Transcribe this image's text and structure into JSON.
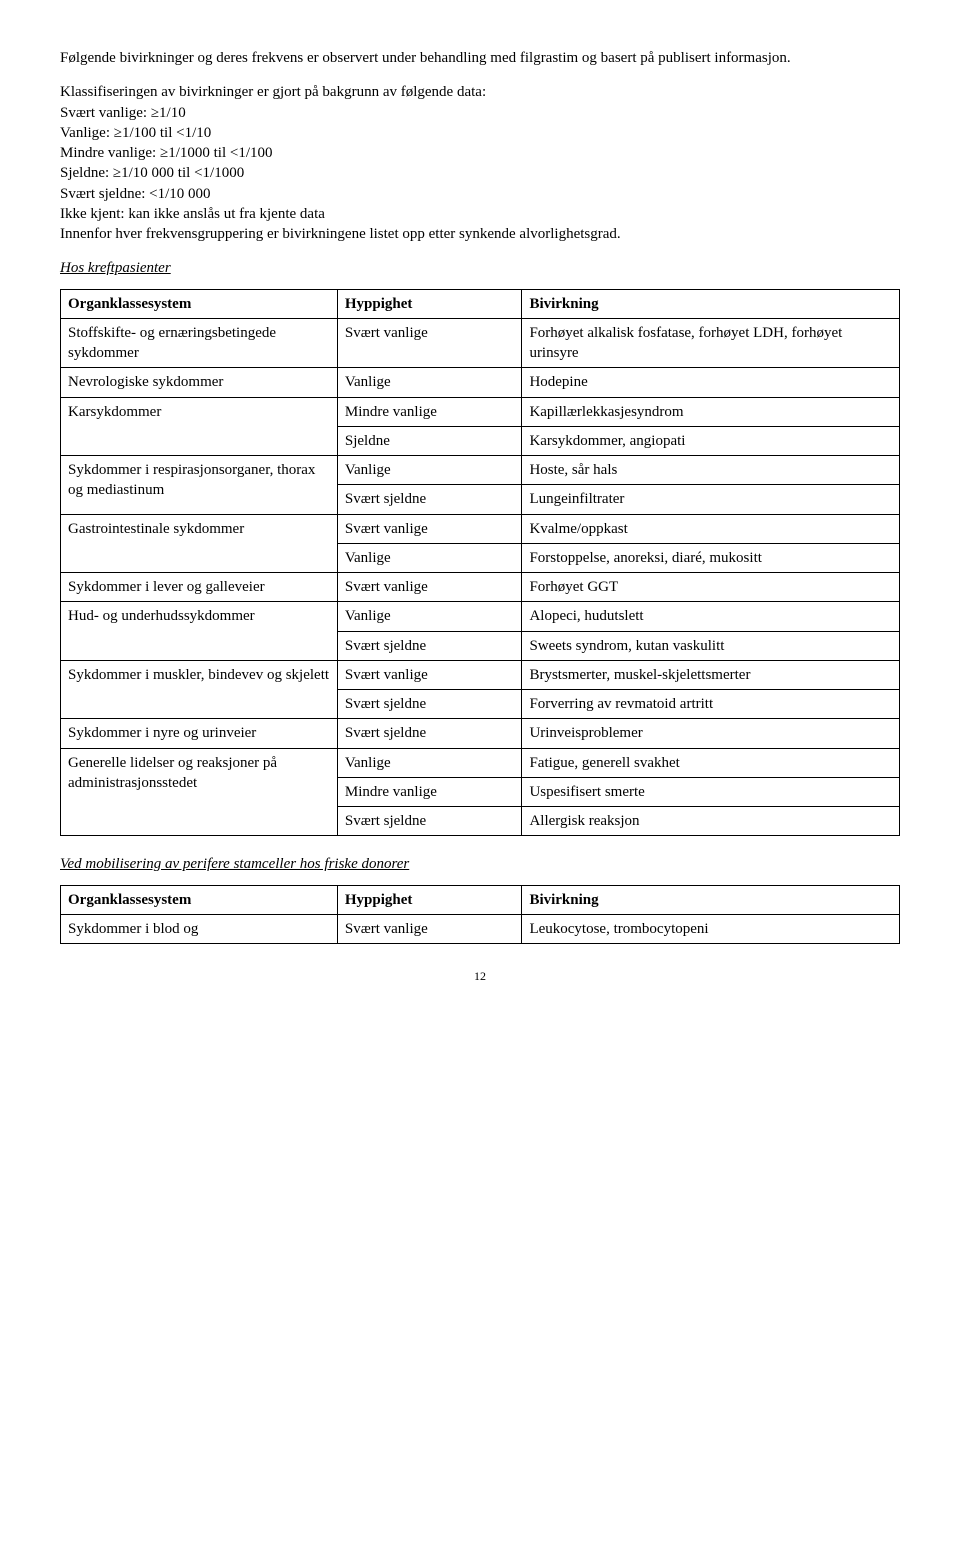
{
  "intro_para": "Følgende bivirkninger og deres frekvens er observert under behandling med filgrastim og basert på publisert informasjon.",
  "defs_intro": "Klassifiseringen av bivirkninger er gjort på bakgrunn av følgende data:",
  "defs": [
    "Svært vanlige: ≥1/10",
    "Vanlige: ≥1/100 til <1/10",
    "Mindre vanlige: ≥1/1000 til <1/100",
    "Sjeldne: ≥1/10 000 til <1/1000",
    "Svært sjeldne: <1/10 000",
    "Ikke kjent: kan ikke anslås ut fra kjente data"
  ],
  "defs_post": "Innenfor hver frekvensgruppering er bivirkningene listet opp etter synkende alvorlighetsgrad.",
  "section1_title": "Hos kreftpasienter",
  "table_headers": {
    "c1": "Organklassesystem",
    "c2": "Hyppighet",
    "c3": "Bivirkning"
  },
  "t1_rows": [
    {
      "c1": "Stoffskifte- og ernæringsbetingede sykdommer",
      "c2": "Svært vanlige",
      "c3": "Forhøyet alkalisk fosfatase, forhøyet LDH, forhøyet urinsyre",
      "rowspan": 1
    },
    {
      "c1": "Nevrologiske sykdommer",
      "c2": "Vanlige",
      "c3": "Hodepine",
      "rowspan": 1
    },
    {
      "c1": "Karsykdommer",
      "c2": "Mindre vanlige",
      "c3": "Kapillærlekkasjesyndrom",
      "rowspan": 2
    },
    {
      "c1": null,
      "c2": "Sjeldne",
      "c3": "Karsykdommer, angiopati"
    },
    {
      "c1": "Sykdommer i respirasjonsorganer, thorax og mediastinum",
      "c2": "Vanlige",
      "c3": "Hoste, sår hals",
      "rowspan": 2
    },
    {
      "c1": null,
      "c2": "Svært sjeldne",
      "c3": "Lungeinfiltrater"
    },
    {
      "c1": "Gastrointestinale sykdommer",
      "c2": "Svært vanlige",
      "c3": "Kvalme/oppkast",
      "rowspan": 2
    },
    {
      "c1": null,
      "c2": "Vanlige",
      "c3": "Forstoppelse, anoreksi, diaré, mukositt"
    },
    {
      "c1": "Sykdommer i lever og galleveier",
      "c2": "Svært vanlige",
      "c3": "Forhøyet GGT",
      "rowspan": 1
    },
    {
      "c1": "Hud- og underhudssykdommer",
      "c2": "Vanlige",
      "c3": "Alopeci, hudutslett",
      "rowspan": 2
    },
    {
      "c1": null,
      "c2": "Svært sjeldne",
      "c3": "Sweets syndrom, kutan vaskulitt"
    },
    {
      "c1": "Sykdommer i muskler, bindevev og skjelett",
      "c2": "Svært vanlige",
      "c3": "Brystsmerter, muskel-skjelettsmerter",
      "rowspan": 2
    },
    {
      "c1": null,
      "c2": "Svært sjeldne",
      "c3": "Forverring av revmatoid artritt"
    },
    {
      "c1": "Sykdommer i nyre og urinveier",
      "c2": "Svært sjeldne",
      "c3": "Urinveisproblemer",
      "rowspan": 1
    },
    {
      "c1": "Generelle lidelser og reaksjoner på administrasjonsstedet",
      "c2": "Vanlige",
      "c3": "Fatigue, generell svakhet",
      "rowspan": 3
    },
    {
      "c1": null,
      "c2": "Mindre vanlige",
      "c3": "Uspesifisert smerte"
    },
    {
      "c1": null,
      "c2": "Svært sjeldne",
      "c3": "Allergisk reaksjon"
    }
  ],
  "section2_title": "Ved mobilisering av perifere stamceller hos friske donorer",
  "t2_rows": [
    {
      "c1": "Sykdommer i blod og",
      "c2": "Svært vanlige",
      "c3": "Leukocytose, trombocytopeni"
    }
  ],
  "page_number": "12"
}
